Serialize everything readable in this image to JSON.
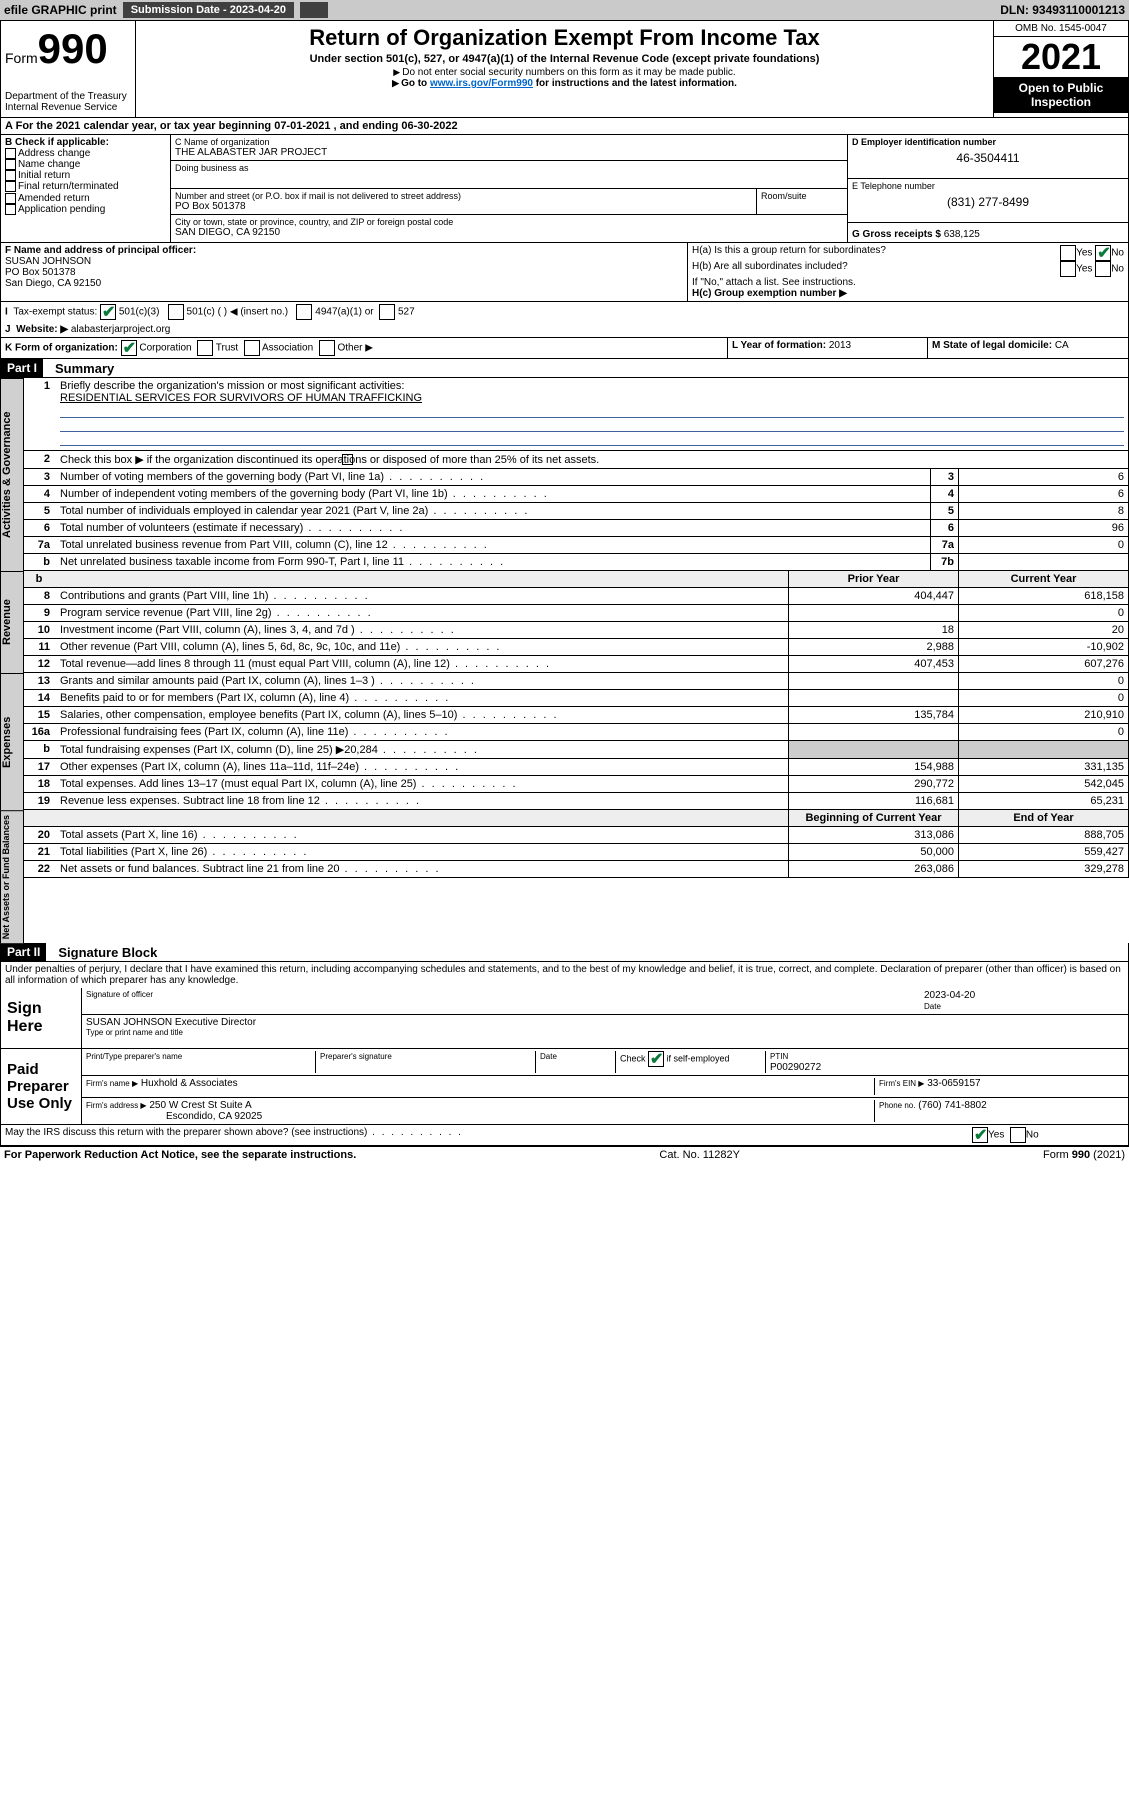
{
  "topbar": {
    "efile": "efile GRAPHIC print",
    "subdate_label": "Submission Date - 2023-04-20",
    "dln": "DLN: 93493110001213"
  },
  "header": {
    "form_word": "Form",
    "form_num": "990",
    "dept": "Department of the Treasury",
    "irs": "Internal Revenue Service",
    "title": "Return of Organization Exempt From Income Tax",
    "sub1": "Under section 501(c), 527, or 4947(a)(1) of the Internal Revenue Code (except private foundations)",
    "sub2": "Do not enter social security numbers on this form as it may be made public.",
    "sub3_pre": "Go to ",
    "sub3_link": "www.irs.gov/Form990",
    "sub3_post": " for instructions and the latest information.",
    "omb": "OMB No. 1545-0047",
    "year": "2021",
    "open": "Open to Public Inspection"
  },
  "lineA": "For the 2021 calendar year, or tax year beginning 07-01-2021   , and ending 06-30-2022",
  "boxB": {
    "label": "B Check if applicable:",
    "items": [
      "Address change",
      "Name change",
      "Initial return",
      "Final return/terminated",
      "Amended return",
      "Application pending"
    ]
  },
  "boxC": {
    "name_lbl": "C Name of organization",
    "name": "THE ALABASTER JAR PROJECT",
    "dba_lbl": "Doing business as",
    "dba": "",
    "street_lbl": "Number and street (or P.O. box if mail is not delivered to street address)",
    "room_lbl": "Room/suite",
    "street": "PO Box 501378",
    "city_lbl": "City or town, state or province, country, and ZIP or foreign postal code",
    "city": "SAN DIEGO, CA  92150"
  },
  "boxD": {
    "lbl": "D Employer identification number",
    "val": "46-3504411"
  },
  "boxE": {
    "lbl": "E Telephone number",
    "val": "(831) 277-8499"
  },
  "boxG": {
    "lbl": "G Gross receipts $",
    "val": "638,125"
  },
  "boxF": {
    "lbl": "F  Name and address of principal officer:",
    "name": "SUSAN JOHNSON",
    "street": "PO Box 501378",
    "city": "San Diego, CA  92150"
  },
  "boxH": {
    "ha": "H(a)  Is this a group return for subordinates?",
    "hb": "H(b)  Are all subordinates included?",
    "hb_note": "If \"No,\" attach a list. See instructions.",
    "hc": "H(c)  Group exemption number ▶"
  },
  "lineI": {
    "lbl": "Tax-exempt status:",
    "c3": "501(c)(3)",
    "c": "501(c) (   ) ◀ (insert no.)",
    "a1": "4947(a)(1) or",
    "s527": "527"
  },
  "lineJ": {
    "lbl": "Website: ▶",
    "val": "alabasterjarproject.org"
  },
  "lineK": {
    "lbl": "K Form of organization:",
    "corp": "Corporation",
    "trust": "Trust",
    "assoc": "Association",
    "other": "Other ▶"
  },
  "lineL": {
    "lbl": "L Year of formation:",
    "val": "2013"
  },
  "lineM": {
    "lbl": "M State of legal domicile:",
    "val": "CA"
  },
  "part1": {
    "hdr": "Part I",
    "title": "Summary",
    "l1_lbl": "Briefly describe the organization's mission or most significant activities:",
    "l1_val": "RESIDENTIAL SERVICES FOR SURVIVORS OF HUMAN TRAFFICKING",
    "l2": "Check this box ▶        if the organization discontinued its operations or disposed of more than 25% of its net assets.",
    "rows_ag": [
      {
        "n": "3",
        "d": "Number of voting members of the governing body (Part VI, line 1a)",
        "lbl": "3",
        "v": "6"
      },
      {
        "n": "4",
        "d": "Number of independent voting members of the governing body (Part VI, line 1b)",
        "lbl": "4",
        "v": "6"
      },
      {
        "n": "5",
        "d": "Total number of individuals employed in calendar year 2021 (Part V, line 2a)",
        "lbl": "5",
        "v": "8"
      },
      {
        "n": "6",
        "d": "Total number of volunteers (estimate if necessary)",
        "lbl": "6",
        "v": "96"
      },
      {
        "n": "7a",
        "d": "Total unrelated business revenue from Part VIII, column (C), line 12",
        "lbl": "7a",
        "v": "0"
      },
      {
        "n": "b",
        "d": "Net unrelated business taxable income from Form 990-T, Part I, line 11",
        "lbl": "7b",
        "v": ""
      }
    ],
    "col_py": "Prior Year",
    "col_cy": "Current Year",
    "rows_rev": [
      {
        "n": "8",
        "d": "Contributions and grants (Part VIII, line 1h)",
        "py": "404,447",
        "cy": "618,158"
      },
      {
        "n": "9",
        "d": "Program service revenue (Part VIII, line 2g)",
        "py": "",
        "cy": "0"
      },
      {
        "n": "10",
        "d": "Investment income (Part VIII, column (A), lines 3, 4, and 7d )",
        "py": "18",
        "cy": "20"
      },
      {
        "n": "11",
        "d": "Other revenue (Part VIII, column (A), lines 5, 6d, 8c, 9c, 10c, and 11e)",
        "py": "2,988",
        "cy": "-10,902"
      },
      {
        "n": "12",
        "d": "Total revenue—add lines 8 through 11 (must equal Part VIII, column (A), line 12)",
        "py": "407,453",
        "cy": "607,276"
      }
    ],
    "rows_exp": [
      {
        "n": "13",
        "d": "Grants and similar amounts paid (Part IX, column (A), lines 1–3 )",
        "py": "",
        "cy": "0"
      },
      {
        "n": "14",
        "d": "Benefits paid to or for members (Part IX, column (A), line 4)",
        "py": "",
        "cy": "0"
      },
      {
        "n": "15",
        "d": "Salaries, other compensation, employee benefits (Part IX, column (A), lines 5–10)",
        "py": "135,784",
        "cy": "210,910"
      },
      {
        "n": "16a",
        "d": "Professional fundraising fees (Part IX, column (A), line 11e)",
        "py": "",
        "cy": "0"
      },
      {
        "n": "b",
        "d": "Total fundraising expenses (Part IX, column (D), line 25) ▶20,284",
        "py": "",
        "cy": "",
        "shade": true
      },
      {
        "n": "17",
        "d": "Other expenses (Part IX, column (A), lines 11a–11d, 11f–24e)",
        "py": "154,988",
        "cy": "331,135"
      },
      {
        "n": "18",
        "d": "Total expenses. Add lines 13–17 (must equal Part IX, column (A), line 25)",
        "py": "290,772",
        "cy": "542,045"
      },
      {
        "n": "19",
        "d": "Revenue less expenses. Subtract line 18 from line 12",
        "py": "116,681",
        "cy": "65,231"
      }
    ],
    "col_boy": "Beginning of Current Year",
    "col_eoy": "End of Year",
    "rows_na": [
      {
        "n": "20",
        "d": "Total assets (Part X, line 16)",
        "py": "313,086",
        "cy": "888,705"
      },
      {
        "n": "21",
        "d": "Total liabilities (Part X, line 26)",
        "py": "50,000",
        "cy": "559,427"
      },
      {
        "n": "22",
        "d": "Net assets or fund balances. Subtract line 21 from line 20",
        "py": "263,086",
        "cy": "329,278"
      }
    ]
  },
  "part2": {
    "hdr": "Part II",
    "title": "Signature Block",
    "decl": "Under penalties of perjury, I declare that I have examined this return, including accompanying schedules and statements, and to the best of my knowledge and belief, it is true, correct, and complete. Declaration of preparer (other than officer) is based on all information of which preparer has any knowledge.",
    "sign_here": "Sign Here",
    "sig_date": "2023-04-20",
    "sig_officer_lbl": "Signature of officer",
    "sig_date_lbl": "Date",
    "officer_name": "SUSAN JOHNSON  Executive Director",
    "officer_name_lbl": "Type or print name and title",
    "paid_lbl": "Paid Preparer Use Only",
    "prep_name_lbl": "Print/Type preparer's name",
    "prep_sig_lbl": "Preparer's signature",
    "prep_date_lbl": "Date",
    "prep_check": "Check          if self-employed",
    "ptin_lbl": "PTIN",
    "ptin": "P00290272",
    "firm_name_lbl": "Firm's name      ▶",
    "firm_name": "Huxhold & Associates",
    "firm_ein_lbl": "Firm's EIN ▶",
    "firm_ein": "33-0659157",
    "firm_addr_lbl": "Firm's address ▶",
    "firm_addr1": "250 W Crest St Suite A",
    "firm_addr2": "Escondido, CA  92025",
    "firm_phone_lbl": "Phone no.",
    "firm_phone": "(760) 741-8802",
    "discuss": "May the IRS discuss this return with the preparer shown above? (see instructions)"
  },
  "footer": {
    "left": "For Paperwork Reduction Act Notice, see the separate instructions.",
    "mid": "Cat. No. 11282Y",
    "right": "Form 990 (2021)"
  },
  "vtabs": {
    "ag": "Activities & Governance",
    "rev": "Revenue",
    "exp": "Expenses",
    "na": "Net Assets or Fund Balances"
  },
  "yes": "Yes",
  "no": "No"
}
